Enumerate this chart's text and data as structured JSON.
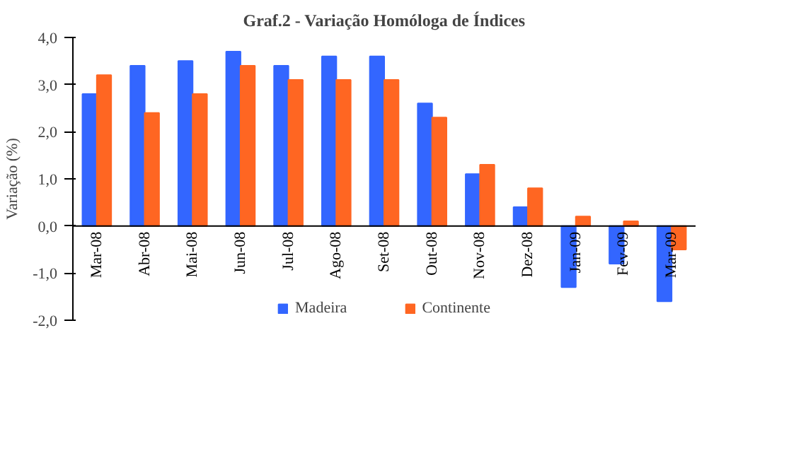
{
  "chart_data": {
    "type": "bar",
    "title": "Graf.2 - Variação Homóloga de Índices",
    "ylabel": "Variação (%)",
    "categories": [
      "Mar-08",
      "Abr-08",
      "Mai-08",
      "Jun-08",
      "Jul-08",
      "Ago-08",
      "Set-08",
      "Out-08",
      "Nov-08",
      "Dez-08",
      "Jan-09",
      "Fev-09",
      "Mar-09"
    ],
    "series": [
      {
        "name": "Madeira",
        "color": "#3366ff",
        "values": [
          2.8,
          3.4,
          3.5,
          3.7,
          3.4,
          3.6,
          3.6,
          2.6,
          1.1,
          0.4,
          -1.3,
          -0.8,
          -1.6
        ]
      },
      {
        "name": "Continente",
        "color": "#ff6622",
        "values": [
          3.2,
          2.4,
          2.8,
          3.4,
          3.1,
          3.1,
          3.1,
          2.3,
          1.3,
          0.8,
          0.2,
          0.1,
          -0.5
        ]
      }
    ],
    "ylim": [
      -2,
      4
    ],
    "yticks": [
      {
        "value": -2,
        "label": "-2,0"
      },
      {
        "value": -1,
        "label": "-1,0"
      },
      {
        "value": 0,
        "label": "0,0"
      },
      {
        "value": 1,
        "label": "1,0"
      },
      {
        "value": 2,
        "label": "2,0"
      },
      {
        "value": 3,
        "label": "3,0"
      },
      {
        "value": 4,
        "label": "4,0"
      }
    ],
    "grid": false,
    "legend": "bottom"
  }
}
